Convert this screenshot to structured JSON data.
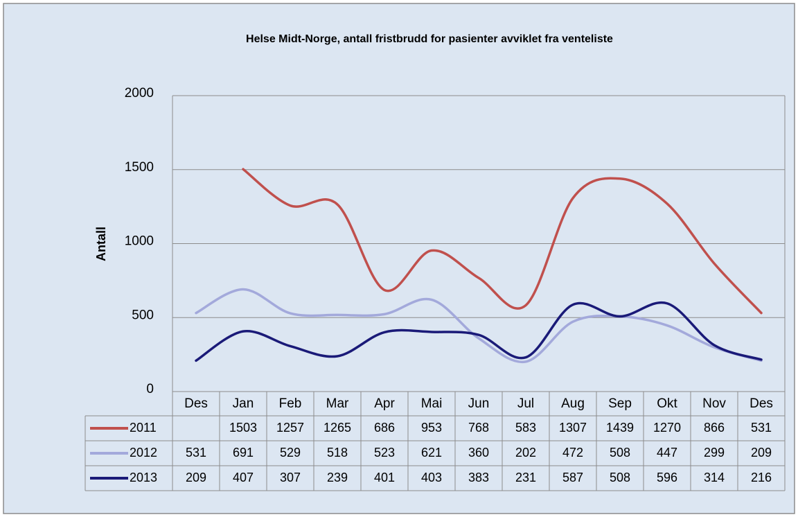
{
  "chart_data": {
    "type": "line",
    "title": "Helse Midt-Norge, antall fristbrudd for pasienter avviklet fra venteliste",
    "y_label": "Antall",
    "categories": [
      "Des",
      "Jan",
      "Feb",
      "Mar",
      "Apr",
      "Mai",
      "Jun",
      "Jul",
      "Aug",
      "Sep",
      "Okt",
      "Nov",
      "Des"
    ],
    "series": [
      {
        "name": "2011",
        "color": "#c0504d",
        "values": [
          null,
          1503,
          1257,
          1265,
          686,
          953,
          768,
          583,
          1307,
          1439,
          1270,
          866,
          531
        ]
      },
      {
        "name": "2012",
        "color": "#a3a9db",
        "values": [
          531,
          691,
          529,
          518,
          523,
          621,
          360,
          202,
          472,
          508,
          447,
          299,
          209
        ]
      },
      {
        "name": "2013",
        "color": "#1a1a78",
        "values": [
          209,
          407,
          307,
          239,
          401,
          403,
          383,
          231,
          587,
          508,
          596,
          314,
          216
        ]
      }
    ],
    "ylim": [
      0,
      2000
    ],
    "yticks": [
      0,
      500,
      1000,
      1500,
      2000
    ],
    "grid": true,
    "smooth": true,
    "data_table": true
  }
}
